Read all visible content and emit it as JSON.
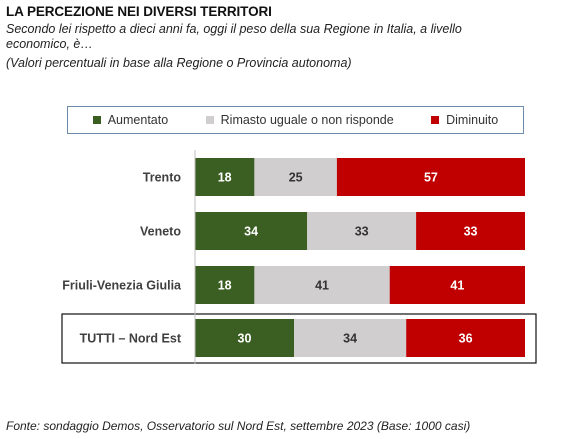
{
  "header": {
    "title": "LA PERCEZIONE NEI DIVERSI TERRITORI",
    "subtitle": "Secondo lei rispetto a dieci anni fa, oggi il peso della sua Regione in Italia, a livello economico, è…",
    "note": "(Valori percentuali in base alla Regione o Provincia autonoma)"
  },
  "footer": {
    "source": "Fonte: sondaggio Demos, Osservatorio sul Nord Est, settembre 2023 (Base: 1000 casi)"
  },
  "colors": {
    "aumentato": "#3b5e22",
    "rimasto": "#d0cece",
    "diminuito": "#c00000"
  },
  "chart_data": {
    "type": "bar",
    "orientation": "horizontal",
    "stacked": true,
    "categories": [
      "Trento",
      "Veneto",
      "Friuli-Venezia Giulia",
      "TUTTI – Nord Est"
    ],
    "series": [
      {
        "name": "Aumentato",
        "values": [
          18,
          34,
          18,
          30
        ],
        "color": "#3b5e22"
      },
      {
        "name": "Rimasto uguale o non risponde",
        "values": [
          25,
          33,
          41,
          34
        ],
        "color": "#d0cece"
      },
      {
        "name": "Diminuito",
        "values": [
          57,
          33,
          41,
          36
        ],
        "color": "#c00000"
      }
    ],
    "xlim": [
      0,
      100
    ],
    "legend": "top",
    "grid": false,
    "highlighted_category": "TUTTI – Nord Est"
  }
}
